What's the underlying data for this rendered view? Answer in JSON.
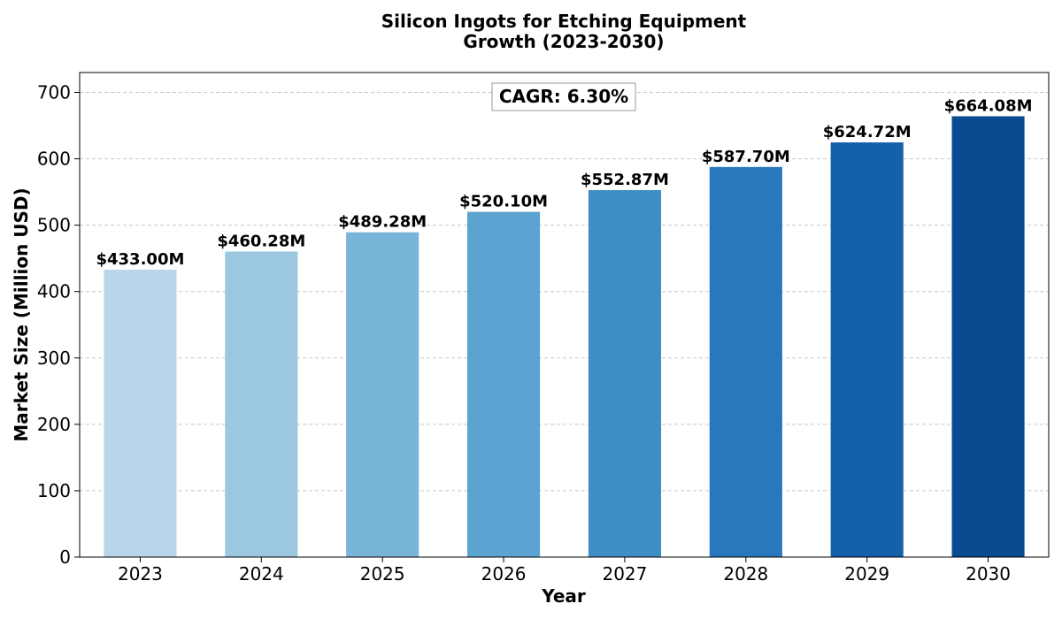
{
  "chart_data": {
    "type": "bar",
    "title": [
      "Silicon Ingots for Etching Equipment",
      "Growth (2023-2030)"
    ],
    "xlabel": "Year",
    "ylabel": "Market Size (Million USD)",
    "categories": [
      "2023",
      "2024",
      "2025",
      "2026",
      "2027",
      "2028",
      "2029",
      "2030"
    ],
    "values": [
      433.0,
      460.28,
      489.28,
      520.1,
      552.87,
      587.7,
      624.72,
      664.08
    ],
    "data_labels": [
      "$433.00M",
      "$460.28M",
      "$489.28M",
      "$520.10M",
      "$552.87M",
      "$587.70M",
      "$624.72M",
      "$664.08M"
    ],
    "colors": [
      "#b9d5ea",
      "#9cc7e1",
      "#79b5d9",
      "#5ba3d0",
      "#3f8dc5",
      "#2878bb",
      "#1460ab",
      "#094a91"
    ],
    "ylim": [
      0,
      730
    ],
    "yticks": [
      0,
      100,
      200,
      300,
      400,
      500,
      600,
      700
    ],
    "grid": "y-dashed",
    "annotation": "CAGR: 6.30%"
  }
}
